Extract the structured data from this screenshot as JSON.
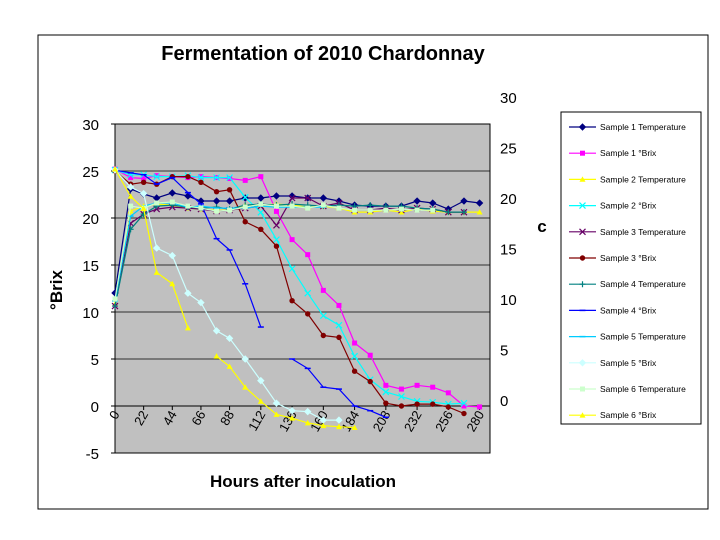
{
  "chart_data": {
    "type": "line",
    "title": "Fermentation of 2010 Chardonnay",
    "xlabel": "Hours after inoculation",
    "ylabel": "°Brix",
    "y2label": "c",
    "xlim": [
      0,
      288
    ],
    "ylim": [
      -5,
      30
    ],
    "y2lim": [
      -1,
      30
    ],
    "x_ticks": [
      "0",
      "22",
      "44",
      "66",
      "88",
      "112",
      "136",
      "160",
      "184",
      "208",
      "232",
      "256",
      "280"
    ],
    "x_tick_values": [
      0,
      22,
      44,
      66,
      88,
      112,
      136,
      160,
      184,
      208,
      232,
      256,
      280
    ],
    "y_ticks": [
      "-5",
      "0",
      "5",
      "10",
      "15",
      "20",
      "25",
      "30"
    ],
    "y2_ticks": [
      "0",
      "5",
      "10",
      "15",
      "20",
      "25",
      "30"
    ],
    "series": [
      {
        "name": "Sample 1 Temperature",
        "axis": "right",
        "color": "#000080",
        "marker": "diamond",
        "x": [
          0,
          12,
          22,
          32,
          44,
          56,
          66,
          78,
          88,
          100,
          112,
          124,
          136,
          148,
          160,
          172,
          184,
          196,
          208,
          220,
          232,
          244,
          256,
          268,
          280
        ],
        "y": [
          10.6,
          20.9,
          20.4,
          20.0,
          20.5,
          20.2,
          19.7,
          19.7,
          19.7,
          20.0,
          20.0,
          20.2,
          20.2,
          20.0,
          20.0,
          19.7,
          19.3,
          19.2,
          19.2,
          19.2,
          19.7,
          19.5,
          18.9,
          19.7,
          19.5
        ]
      },
      {
        "name": "Sample 1 °Brix",
        "axis": "left",
        "color": "#ff00ff",
        "marker": "square",
        "x": [
          0,
          12,
          22,
          32,
          44,
          56,
          66,
          78,
          88,
          100,
          112,
          124,
          136,
          148,
          160,
          172,
          184,
          196,
          208,
          220,
          232,
          244,
          256,
          268,
          280
        ],
        "y": [
          25.2,
          24.3,
          24.2,
          24.5,
          24.4,
          24.3,
          24.4,
          24.3,
          24.2,
          24.0,
          24.4,
          20.7,
          17.7,
          16.1,
          12.3,
          10.7,
          6.7,
          5.4,
          2.2,
          1.8,
          2.2,
          2.0,
          1.4,
          0.0,
          -0.1
        ]
      },
      {
        "name": "Sample 2 Temperature",
        "axis": "right",
        "color": "#ffff00",
        "marker": "triangle",
        "x": [
          0,
          12,
          22,
          32,
          44,
          56,
          66,
          78,
          88,
          100,
          112,
          124,
          136,
          148,
          160,
          172,
          184,
          196,
          208,
          220,
          232,
          244,
          256,
          268,
          280
        ],
        "y": [
          9.5,
          18.7,
          19.2,
          19.4,
          19.3,
          19.0,
          18.9,
          18.8,
          18.8,
          19.3,
          19.3,
          19.4,
          19.3,
          19.1,
          19.2,
          19.0,
          18.6,
          18.6,
          18.8,
          18.6,
          18.9,
          18.7,
          18.6,
          18.6,
          18.6
        ]
      },
      {
        "name": "Sample 2 °Brix",
        "axis": "left",
        "color": "#00ffff",
        "marker": "x",
        "x": [
          0,
          12,
          22,
          32,
          44,
          56,
          66,
          78,
          88,
          100,
          112,
          124,
          136,
          148,
          160,
          172,
          184,
          196,
          208,
          220,
          232,
          244,
          256,
          268
        ],
        "y": [
          25.1,
          24.6,
          24.6,
          24.4,
          24.4,
          24.5,
          24.3,
          24.3,
          24.3,
          22.2,
          20.6,
          17.7,
          14.6,
          12.0,
          9.6,
          8.6,
          5.3,
          2.8,
          1.5,
          1.0,
          0.5,
          0.4,
          0.2,
          0.3
        ]
      },
      {
        "name": "Sample 3 Temperature",
        "axis": "right",
        "color": "#660066",
        "marker": "x",
        "x": [
          0,
          12,
          22,
          32,
          44,
          56,
          66,
          78,
          88,
          100,
          112,
          124,
          136,
          148,
          160,
          172,
          184,
          196,
          208,
          220,
          232,
          244,
          256,
          268
        ],
        "y": [
          9.3,
          17.5,
          18.4,
          18.9,
          19.1,
          19.0,
          18.9,
          18.7,
          18.8,
          19.0,
          19.2,
          17.3,
          20.0,
          20.0,
          19.2,
          19.5,
          18.8,
          18.8,
          19.0,
          18.8,
          19.0,
          18.9,
          18.6,
          18.6
        ]
      },
      {
        "name": "Sample 3 °Brix",
        "axis": "left",
        "color": "#800000",
        "marker": "circle",
        "x": [
          0,
          12,
          22,
          32,
          44,
          56,
          66,
          78,
          88,
          100,
          112,
          124,
          136,
          148,
          160,
          172,
          184,
          196,
          208,
          220,
          232,
          244,
          256,
          268
        ],
        "y": [
          25.0,
          23.6,
          23.8,
          23.6,
          24.4,
          24.4,
          23.8,
          22.8,
          23.0,
          19.6,
          18.8,
          17.0,
          11.2,
          9.8,
          7.5,
          7.3,
          3.7,
          2.6,
          0.3,
          0.0,
          0.2,
          0.2,
          -0.1,
          -0.8
        ]
      },
      {
        "name": "Sample 4 Temperature",
        "axis": "right",
        "color": "#008080",
        "marker": "plus",
        "x": [
          0,
          12,
          22,
          32,
          44,
          56,
          66,
          78,
          88,
          100,
          112,
          124,
          136,
          148,
          160,
          172,
          184,
          196,
          208,
          220,
          232,
          244,
          256,
          268
        ],
        "y": [
          9.3,
          16.9,
          18.4,
          19.2,
          19.3,
          19.1,
          19.0,
          19.1,
          18.9,
          19.3,
          19.4,
          19.3,
          19.4,
          19.3,
          19.2,
          19.3,
          19.2,
          19.3,
          19.2,
          19.2,
          19.0,
          18.9,
          18.6,
          18.6
        ]
      },
      {
        "name": "Sample 4 °Brix",
        "axis": "left",
        "color": "#0000ff",
        "marker": "dash",
        "x": [
          0,
          12,
          22,
          32,
          44,
          56,
          66,
          78,
          88,
          100,
          112,
          124,
          136,
          148,
          160,
          172,
          184,
          196,
          208
        ],
        "y": [
          25.1,
          24.8,
          24.6,
          23.6,
          24.3,
          22.7,
          21.5,
          17.8,
          16.6,
          13.0,
          8.4,
          null,
          5.0,
          4.0,
          2.0,
          1.8,
          0.0,
          -0.5,
          -1.2
        ]
      },
      {
        "name": "Sample 5 Temperature",
        "axis": "right",
        "color": "#00ccff",
        "marker": "dash",
        "x": [
          0,
          12,
          22,
          32,
          44,
          56,
          66,
          78,
          88,
          100,
          112,
          124,
          136,
          148,
          160
        ],
        "y": [
          9.8,
          18.2,
          19.2,
          19.5,
          19.5,
          19.1,
          19.2,
          19.0,
          19.0,
          19.0,
          19.2,
          19.1,
          19.1,
          19.1,
          19.1
        ]
      },
      {
        "name": "Sample 5 °Brix",
        "axis": "left",
        "color": "#ccffff",
        "marker": "diamond",
        "x": [
          0,
          12,
          22,
          32,
          44,
          56,
          66,
          78,
          88,
          100,
          112,
          124,
          136,
          148,
          160,
          172
        ],
        "y": [
          25.1,
          23.3,
          22.6,
          16.8,
          16.0,
          12.0,
          11.0,
          8.0,
          7.2,
          5.0,
          2.7,
          0.3,
          -0.5,
          -0.6,
          -1.5,
          -1.5
        ]
      },
      {
        "name": "Sample 6 Temperature",
        "axis": "right",
        "color": "#ccffcc",
        "marker": "square",
        "x": [
          0,
          12,
          22,
          32,
          44,
          56,
          66,
          78,
          88,
          100,
          112,
          124,
          136,
          148,
          160,
          172,
          184,
          196,
          208,
          220,
          232,
          244
        ],
        "y": [
          10.0,
          19.2,
          19.0,
          19.5,
          19.6,
          19.2,
          19.0,
          18.7,
          18.8,
          19.1,
          19.4,
          19.2,
          19.2,
          19.0,
          19.3,
          19.0,
          18.8,
          18.8,
          18.8,
          18.9,
          18.8,
          18.8
        ]
      },
      {
        "name": "Sample 6 °Brix",
        "axis": "left",
        "color": "#ffff00",
        "marker": "triangle",
        "x": [
          0,
          12,
          22,
          32,
          44,
          56,
          66,
          78,
          88,
          100,
          112,
          124,
          136,
          148,
          160,
          172,
          184
        ],
        "y": [
          25.2,
          22.3,
          21.0,
          14.2,
          13.0,
          8.3,
          null,
          5.3,
          4.2,
          2.0,
          0.5,
          -0.9,
          -1.3,
          -1.8,
          -2.1,
          -2.2,
          -2.3
        ]
      }
    ],
    "colors": {
      "plot_bg": "#c0c0c0",
      "frame": "#000000",
      "page_bg": "#ffffff"
    }
  }
}
